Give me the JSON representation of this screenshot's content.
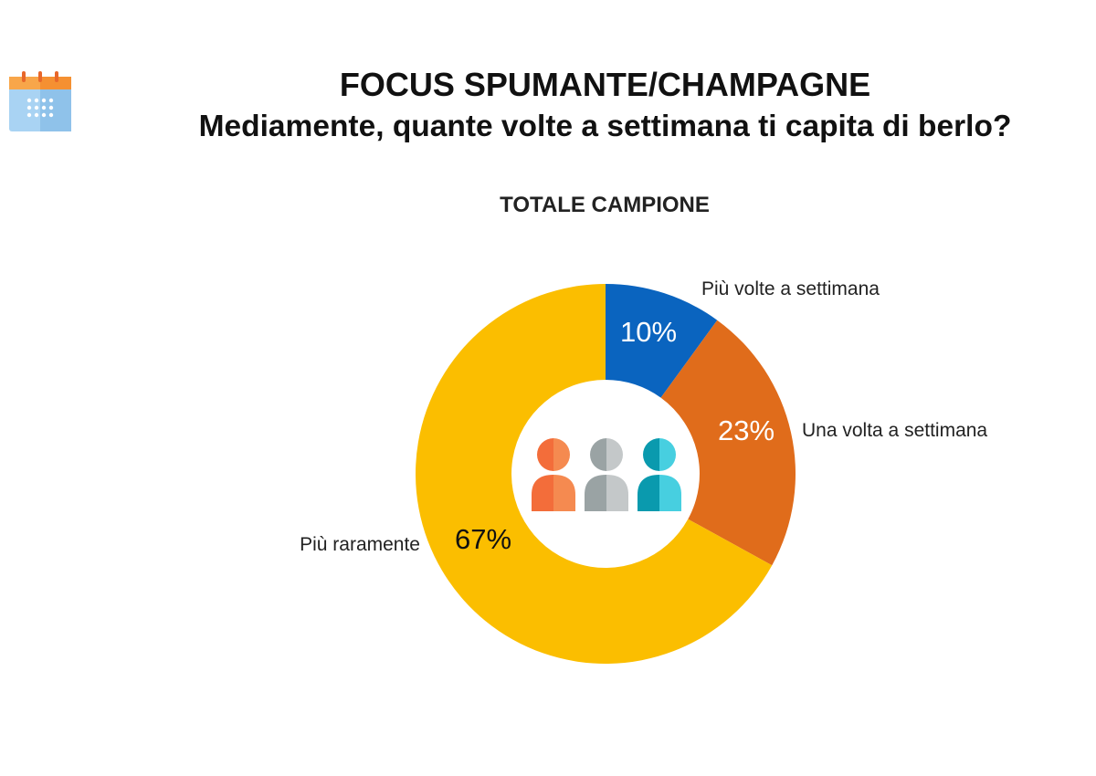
{
  "header": {
    "icon": "calendar-icon",
    "title": "FOCUS SPUMANTE/CHAMPAGNE",
    "subtitle": "Mediamente, quante volte a settimana ti capita di berlo?"
  },
  "colors": {
    "blue": "#0a64bf",
    "orange": "#e06c1b",
    "yellow": "#fbbe00",
    "text": "#222222"
  },
  "center_icon": "people-group-icon",
  "chart_data": {
    "type": "pie",
    "title": "TOTALE CAMPIONE",
    "slices": [
      {
        "label": "Più volte a settimana",
        "value": 10,
        "value_label": "10%",
        "color": "#0a64bf"
      },
      {
        "label": "Una volta a settimana",
        "value": 23,
        "value_label": "23%",
        "color": "#e06c1b"
      },
      {
        "label": "Più raramente",
        "value": 67,
        "value_label": "67%",
        "color": "#fbbe00"
      }
    ],
    "donut": true
  }
}
